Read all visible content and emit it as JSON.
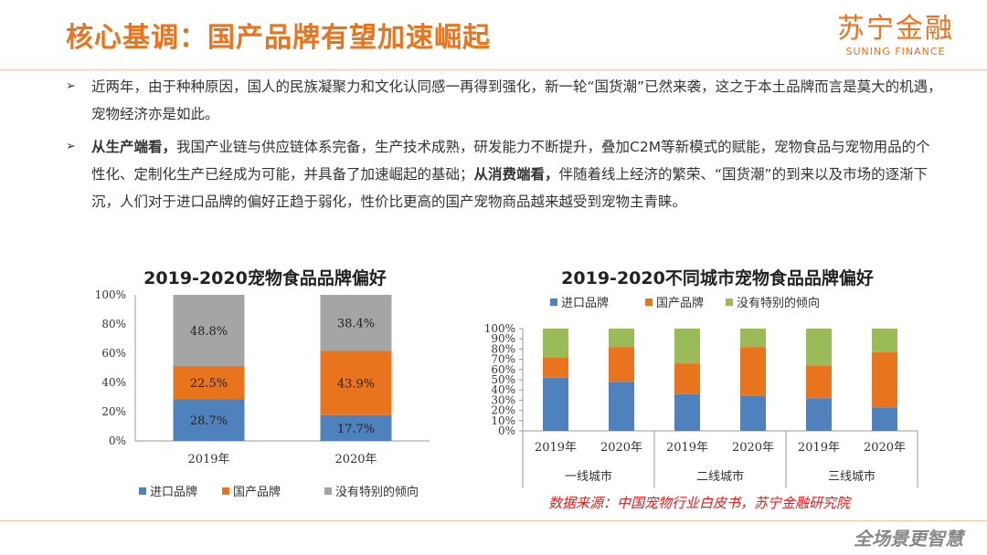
{
  "header": {
    "title": "核心基调：国产品牌有望加速崛起"
  },
  "logo": {
    "cn": "苏宁金融",
    "en": "SUNING FINANCE"
  },
  "body": {
    "p1": "近两年，由于种种原因，国人的民族凝聚力和文化认同感一再得到强化，新一轮“国货潮”已然来袭，这之于本土品牌而言是莫大的机遇，宠物经济亦是如此。",
    "p2_bold1": "从生产端看，",
    "p2_text1": "我国产业链与供应链体系完备，生产技术成熟，研发能力不断提升，叠加C2M等新模式的赋能，宠物食品与宠物用品的个性化、定制化生产已经成为可能，并具备了加速崛起的基础；",
    "p2_bold2": "从消费端看，",
    "p2_text2": "伴随着线上经济的繁荣、“国货潮”的到来以及市场的逐渐下沉，人们对于进口品牌的偏好正趋于弱化，性价比更高的国产宠物商品越来越受到宠物主青睐。"
  },
  "colors": {
    "imported": "#4f81bd",
    "domestic": "#e8741e",
    "none": "#a5a5a5",
    "none2": "#9bbb59",
    "accent": "#e8741e",
    "source": "#e4191c"
  },
  "source_note": "数据来源：中国宠物行业白皮书，苏宁金融研究院",
  "slogan": "全场景更智慧",
  "chart_data": [
    {
      "type": "bar",
      "stacked": true,
      "title": "2019-2020宠物食品品牌偏好",
      "categories": [
        "2019年",
        "2020年"
      ],
      "series": [
        {
          "name": "进口品牌",
          "values": [
            28.7,
            17.7
          ],
          "labels": [
            "28.7%",
            "17.7%"
          ],
          "color": "#4f81bd"
        },
        {
          "name": "国产品牌",
          "values": [
            22.5,
            43.9
          ],
          "labels": [
            "22.5%",
            "43.9%"
          ],
          "color": "#e8741e"
        },
        {
          "name": "没有特别的倾向",
          "values": [
            48.8,
            38.4
          ],
          "labels": [
            "48.8%",
            "38.4%"
          ],
          "color": "#a5a5a5"
        }
      ],
      "yticks": [
        "0%",
        "20%",
        "40%",
        "60%",
        "80%",
        "100%"
      ],
      "ylim": [
        0,
        100
      ],
      "legend": "bottom"
    },
    {
      "type": "bar",
      "stacked": true,
      "title": "2019-2020不同城市宠物食品品牌偏好",
      "categories": [
        "2019年",
        "2020年",
        "2019年",
        "2020年",
        "2019年",
        "2020年"
      ],
      "groups": [
        "一线城市",
        "二线城市",
        "三线城市"
      ],
      "series": [
        {
          "name": "进口品牌",
          "values": [
            52,
            48,
            36,
            34,
            32,
            23
          ],
          "color": "#4f81bd"
        },
        {
          "name": "国产品牌",
          "values": [
            20,
            34,
            30,
            48,
            32,
            54
          ],
          "color": "#e8741e"
        },
        {
          "name": "没有特别的倾向",
          "values": [
            28,
            18,
            34,
            18,
            36,
            23
          ],
          "color": "#9bbb59"
        }
      ],
      "yticks": [
        "0%",
        "10%",
        "20%",
        "30%",
        "40%",
        "50%",
        "60%",
        "70%",
        "80%",
        "90%",
        "100%"
      ],
      "ylim": [
        0,
        100
      ],
      "legend": "top"
    }
  ]
}
